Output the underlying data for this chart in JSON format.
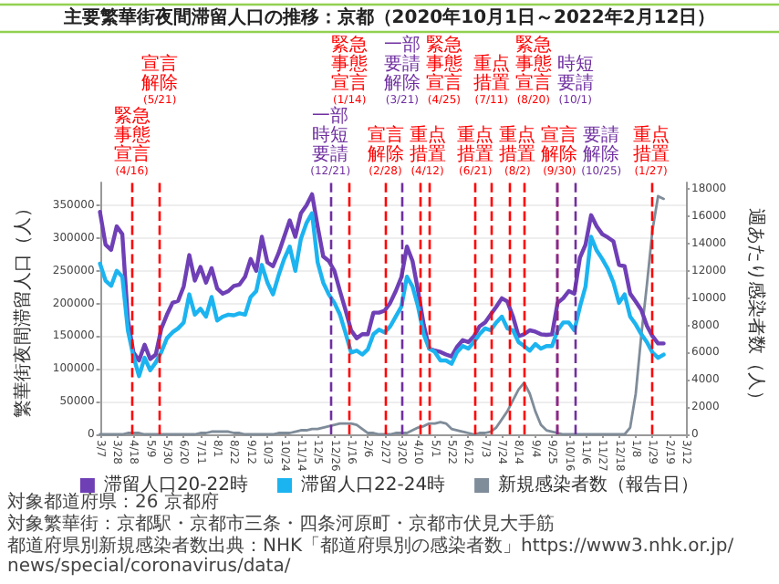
{
  "chart_data": {
    "type": "line",
    "title": "主要繁華街夜間滞留人口の推移：京都（2020年10月1日～2022年2月12日）",
    "ylabel": "繁華街夜間滞留人口（人）",
    "y2label": "週あたり感染者数（人）",
    "x": [
      "2020-03-07",
      "2020-03-14",
      "2020-03-21",
      "2020-03-28",
      "2020-04-04",
      "2020-04-11",
      "2020-04-18",
      "2020-04-25",
      "2020-05-02",
      "2020-05-09",
      "2020-05-16",
      "2020-05-23",
      "2020-05-30",
      "2020-06-06",
      "2020-06-13",
      "2020-06-20",
      "2020-06-27",
      "2020-07-04",
      "2020-07-11",
      "2020-07-18",
      "2020-07-25",
      "2020-08-01",
      "2020-08-08",
      "2020-08-15",
      "2020-08-22",
      "2020-08-29",
      "2020-09-05",
      "2020-09-12",
      "2020-09-19",
      "2020-09-26",
      "2020-10-03",
      "2020-10-10",
      "2020-10-17",
      "2020-10-24",
      "2020-10-31",
      "2020-11-07",
      "2020-11-14",
      "2020-11-21",
      "2020-11-28",
      "2020-12-05",
      "2020-12-12",
      "2020-12-19",
      "2020-12-26",
      "2021-01-02",
      "2021-01-09",
      "2021-01-16",
      "2021-01-23",
      "2021-01-30",
      "2021-02-06",
      "2021-02-13",
      "2021-02-20",
      "2021-02-27",
      "2021-03-06",
      "2021-03-13",
      "2021-03-20",
      "2021-03-27",
      "2021-04-03",
      "2021-04-10",
      "2021-04-17",
      "2021-04-24",
      "2021-05-01",
      "2021-05-08",
      "2021-05-15",
      "2021-05-22",
      "2021-05-29",
      "2021-06-05",
      "2021-06-12",
      "2021-06-19",
      "2021-06-26",
      "2021-07-03",
      "2021-07-10",
      "2021-07-17",
      "2021-07-24",
      "2021-07-31",
      "2021-08-07",
      "2021-08-14",
      "2021-08-21",
      "2021-08-28",
      "2021-09-04",
      "2021-09-11",
      "2021-09-18",
      "2021-09-25",
      "2021-10-02",
      "2021-10-09",
      "2021-10-16",
      "2021-10-23",
      "2021-10-30",
      "2021-11-06",
      "2021-11-13",
      "2021-11-20",
      "2021-11-27",
      "2021-12-04",
      "2021-12-11",
      "2021-12-18",
      "2021-12-25",
      "2022-01-01",
      "2022-01-08",
      "2022-01-15",
      "2022-01-22",
      "2022-01-29",
      "2022-02-05",
      "2022-02-12"
    ],
    "series": [
      {
        "name": "滞留人口20-22時",
        "color": "#6f3fb6",
        "values": [
          340000,
          290000,
          282000,
          318000,
          306000,
          175000,
          125000,
          113000,
          137000,
          115000,
          122000,
          162000,
          183000,
          201000,
          204000,
          226000,
          274000,
          235000,
          256000,
          232000,
          254000,
          223000,
          215000,
          219000,
          227000,
          229000,
          241000,
          268000,
          250000,
          302000,
          263000,
          257000,
          277000,
          302000,
          327000,
          302000,
          338000,
          350000,
          367000,
          318000,
          272000,
          265000,
          250000,
          219000,
          190000,
          159000,
          147000,
          153000,
          153000,
          186000,
          186000,
          189000,
          201000,
          219000,
          240000,
          287000,
          265000,
          219000,
          168000,
          131000,
          128000,
          126000,
          122000,
          119000,
          134000,
          144000,
          141000,
          150000,
          165000,
          171000,
          183000,
          195000,
          208000,
          203000,
          180000,
          150000,
          153000,
          159000,
          157000,
          153000,
          152000,
          153000,
          201000,
          208000,
          219000,
          215000,
          270000,
          290000,
          335000,
          318000,
          306000,
          301000,
          295000,
          259000,
          257000,
          215000,
          203000,
          190000,
          166000,
          150000,
          139000,
          139000
        ]
      },
      {
        "name": "滞留人口22-24時",
        "color": "#1cb4f0",
        "values": [
          261000,
          235000,
          227000,
          250000,
          241000,
          159000,
          119000,
          89000,
          117000,
          98000,
          110000,
          126000,
          147000,
          156000,
          162000,
          171000,
          214000,
          183000,
          192000,
          180000,
          210000,
          174000,
          180000,
          183000,
          182000,
          185000,
          183000,
          210000,
          219000,
          259000,
          232000,
          214000,
          243000,
          268000,
          287000,
          250000,
          299000,
          323000,
          338000,
          263000,
          232000,
          214000,
          201000,
          183000,
          155000,
          125000,
          128000,
          122000,
          130000,
          153000,
          160000,
          156000,
          165000,
          180000,
          195000,
          241000,
          226000,
          195000,
          153000,
          131000,
          126000,
          113000,
          113000,
          108000,
          126000,
          135000,
          131000,
          141000,
          153000,
          162000,
          159000,
          171000,
          180000,
          162000,
          159000,
          141000,
          135000,
          128000,
          138000,
          131000,
          135000,
          135000,
          159000,
          171000,
          171000,
          159000,
          195000,
          226000,
          302000,
          281000,
          268000,
          253000,
          232000,
          201000,
          214000,
          180000,
          168000,
          153000,
          141000,
          125000,
          117000,
          122000
        ]
      },
      {
        "name": "新規感染者数（報告日）",
        "color": "#7f8c99",
        "axis": "y2",
        "values": [
          0,
          0,
          0,
          0,
          0,
          100,
          100,
          100,
          0,
          0,
          0,
          0,
          0,
          0,
          0,
          0,
          0,
          0,
          100,
          100,
          200,
          200,
          200,
          200,
          100,
          100,
          0,
          0,
          0,
          0,
          0,
          0,
          100,
          100,
          100,
          200,
          300,
          300,
          400,
          400,
          500,
          600,
          700,
          800,
          800,
          800,
          700,
          400,
          100,
          100,
          0,
          0,
          0,
          100,
          100,
          100,
          300,
          500,
          600,
          800,
          800,
          900,
          800,
          400,
          300,
          200,
          100,
          0,
          100,
          100,
          200,
          500,
          1100,
          1700,
          2500,
          3300,
          3800,
          3000,
          1700,
          700,
          300,
          200,
          100,
          0,
          0,
          0,
          0,
          0,
          0,
          0,
          0,
          0,
          0,
          0,
          0,
          500,
          3000,
          7300,
          11000,
          15000,
          17500,
          17300
        ]
      }
    ],
    "xlim": [
      "2020-03-07",
      "2022-03-12"
    ],
    "xticks": [
      {
        "value": "2020-03-07",
        "label": "3/7"
      },
      {
        "value": "2020-03-28",
        "label": "3/28"
      },
      {
        "value": "2020-04-18",
        "label": "4/18"
      },
      {
        "value": "2020-05-09",
        "label": "5/9"
      },
      {
        "value": "2020-05-30",
        "label": "5/30"
      },
      {
        "value": "2020-06-20",
        "label": "6/20"
      },
      {
        "value": "2020-07-11",
        "label": "7/11"
      },
      {
        "value": "2020-08-01",
        "label": "8/1"
      },
      {
        "value": "2020-08-22",
        "label": "8/22"
      },
      {
        "value": "2020-09-12",
        "label": "9/12"
      },
      {
        "value": "2020-10-03",
        "label": "10/3"
      },
      {
        "value": "2020-10-24",
        "label": "10/24"
      },
      {
        "value": "2020-11-14",
        "label": "11/14"
      },
      {
        "value": "2020-12-05",
        "label": "12/5"
      },
      {
        "value": "2020-12-26",
        "label": "12/26"
      },
      {
        "value": "2021-01-16",
        "label": "1/16"
      },
      {
        "value": "2021-02-06",
        "label": "2/6"
      },
      {
        "value": "2021-02-27",
        "label": "2/27"
      },
      {
        "value": "2021-03-20",
        "label": "3/20"
      },
      {
        "value": "2021-04-10",
        "label": "4/10"
      },
      {
        "value": "2021-05-01",
        "label": "5/1"
      },
      {
        "value": "2021-05-22",
        "label": "5/22"
      },
      {
        "value": "2021-06-12",
        "label": "6/12"
      },
      {
        "value": "2021-07-03",
        "label": "7/3"
      },
      {
        "value": "2021-07-24",
        "label": "7/24"
      },
      {
        "value": "2021-08-14",
        "label": "8/14"
      },
      {
        "value": "2021-09-04",
        "label": "9/4"
      },
      {
        "value": "2021-09-25",
        "label": "9/25"
      },
      {
        "value": "2021-10-16",
        "label": "10/16"
      },
      {
        "value": "2021-11-06",
        "label": "11/6"
      },
      {
        "value": "2021-11-27",
        "label": "11/27"
      },
      {
        "value": "2021-12-18",
        "label": "12/18"
      },
      {
        "value": "2022-01-08",
        "label": "1/8"
      },
      {
        "value": "2022-01-29",
        "label": "1/29"
      },
      {
        "value": "2022-02-19",
        "label": "2/19"
      },
      {
        "value": "2022-03-12",
        "label": "3/12"
      }
    ],
    "ylim": [
      0,
      385000
    ],
    "yticks": [
      0,
      50000,
      100000,
      150000,
      200000,
      250000,
      300000,
      350000
    ],
    "y2lim": [
      0,
      18500
    ],
    "y2ticks": [
      0,
      2000,
      4000,
      6000,
      8000,
      10000,
      12000,
      14000,
      16000,
      18000
    ],
    "ref_lines": [
      {
        "axis": "x",
        "value": "2020-04-16",
        "label": "緊急事態宣言(4/16)",
        "color": "#ff0000",
        "line_style": "dashed"
      },
      {
        "axis": "x",
        "value": "2020-05-21",
        "label": "宣言解除(5/21)",
        "color": "#ff0000",
        "line_style": "dashed"
      },
      {
        "axis": "x",
        "value": "2020-12-21",
        "label": "一部時短要請(12/21)",
        "color": "#7030a0",
        "line_style": "dashed"
      },
      {
        "axis": "x",
        "value": "2021-01-14",
        "label": "緊急事態宣言(1/14)",
        "color": "#ff0000",
        "line_style": "dashed"
      },
      {
        "axis": "x",
        "value": "2021-02-28",
        "label": "宣言解除(2/28)",
        "color": "#ff0000",
        "line_style": "dashed"
      },
      {
        "axis": "x",
        "value": "2021-03-21",
        "label": "一部要請解除(3/21)",
        "color": "#7030a0",
        "line_style": "dashed"
      },
      {
        "axis": "x",
        "value": "2021-04-12",
        "label": "重点措置(4/12)",
        "color": "#ff0000",
        "line_style": "dashed"
      },
      {
        "axis": "x",
        "value": "2021-04-25",
        "label": "緊急事態宣言(4/25)",
        "color": "#ff0000",
        "line_style": "dashed"
      },
      {
        "axis": "x",
        "value": "2021-06-21",
        "label": "重点措置(6/21)",
        "color": "#ff0000",
        "line_style": "dashed"
      },
      {
        "axis": "x",
        "value": "2021-07-11",
        "label": "重点措置(7/11)",
        "color": "#ff0000",
        "line_style": "dashed"
      },
      {
        "axis": "x",
        "value": "2021-08-02",
        "label": "重点措置(8/2)",
        "color": "#ff0000",
        "line_style": "dashed"
      },
      {
        "axis": "x",
        "value": "2021-08-20",
        "label": "緊急事態宣言(8/20)",
        "color": "#ff0000",
        "line_style": "dashed"
      },
      {
        "axis": "x",
        "value": "2021-09-30",
        "label": "宣言解除(9/30)",
        "color": "#ff0000",
        "line_style": "dashed"
      },
      {
        "axis": "x",
        "value": "2021-10-01",
        "label": "時短要請(10/1)",
        "color": "#7030a0",
        "line_style": "dashed"
      },
      {
        "axis": "x",
        "value": "2021-10-25",
        "label": "要請解除(10/25)",
        "color": "#7030a0",
        "line_style": "dashed"
      },
      {
        "axis": "x",
        "value": "2022-01-27",
        "label": "重点措置(1/27)",
        "color": "#ff0000",
        "line_style": "dashed"
      }
    ],
    "annotations": [
      "対象都道府県：26 京都府",
      "対象繁華街：京都駅・京都市三条・四条河原町・京都市伏見大手筋",
      "都道府県別新規感染者数出典：NHK「都道府県別の感染者数」https://www3.nhk.or.jp/news/special/coronavirus/data/"
    ],
    "grid": "y",
    "legend": "bottom"
  }
}
